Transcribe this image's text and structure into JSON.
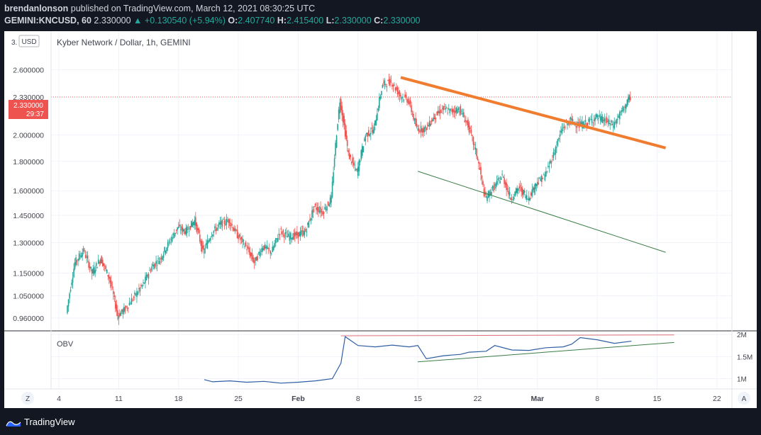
{
  "header": {
    "publisher": "brendanlonson",
    "published_text": "published on TradingView.com, March 12, 2021 08:30:25 UTC",
    "symbol": "GEMINI:KNCUSD, 60",
    "last": "2.330000",
    "change": "▲ +0.130540 (+5.94%)",
    "o_label": "O:",
    "o": "2.407740",
    "h_label": "H:",
    "h": "2.415400",
    "l_label": "L:",
    "l": "2.330000",
    "c_label": "C:",
    "c": "2.330000"
  },
  "chart": {
    "title": "Kyber Network / Dollar, 1h, GEMINI",
    "currency_badge": "USD",
    "top_tick_partial": "3.",
    "price_badge": "2.330000",
    "countdown": "29:37",
    "indicator_label": "OBV",
    "timezone_button": "Z",
    "auto_button": "A",
    "colors": {
      "price_line": "#e74c3c",
      "resistance": "#f07c2f",
      "support": "#3a7d44",
      "obv_line": "#2e5fa3",
      "obv_resistance": "#e0737a",
      "obv_support": "#3a7d44",
      "up": "#26a69a",
      "down": "#ef5350"
    }
  },
  "chart_data": [
    {
      "type": "candlestick",
      "title": "Kyber Network / Dollar, 1h, GEMINI",
      "y_ticks": [
        "2.600000",
        "2.330000",
        "2.000000",
        "1.800000",
        "1.600000",
        "1.450000",
        "1.300000",
        "1.150000",
        "1.050000",
        "0.960000"
      ],
      "x_ticks": [
        "4",
        "11",
        "18",
        "25",
        "Feb",
        "8",
        "15",
        "22",
        "Mar",
        "8",
        "15",
        "22"
      ],
      "ylim": [
        0.92,
        3.0
      ],
      "scale": "log",
      "close_path": [
        [
          "Jan 5",
          0.98
        ],
        [
          "Jan 6",
          1.2
        ],
        [
          "Jan 7",
          1.26
        ],
        [
          "Jan 8",
          1.15
        ],
        [
          "Jan 9",
          1.22
        ],
        [
          "Jan 10",
          1.13
        ],
        [
          "Jan 11",
          0.97
        ],
        [
          "Jan 12",
          1.0
        ],
        [
          "Jan 13",
          1.05
        ],
        [
          "Jan 14",
          1.1
        ],
        [
          "Jan 15",
          1.18
        ],
        [
          "Jan 16",
          1.22
        ],
        [
          "Jan 17",
          1.3
        ],
        [
          "Jan 18",
          1.38
        ],
        [
          "Jan 19",
          1.36
        ],
        [
          "Jan 20",
          1.42
        ],
        [
          "Jan 21",
          1.25
        ],
        [
          "Jan 22",
          1.35
        ],
        [
          "Jan 23",
          1.4
        ],
        [
          "Jan 24",
          1.42
        ],
        [
          "Jan 25",
          1.34
        ],
        [
          "Jan 26",
          1.28
        ],
        [
          "Jan 27",
          1.2
        ],
        [
          "Jan 28",
          1.28
        ],
        [
          "Jan 29",
          1.25
        ],
        [
          "Jan 30",
          1.36
        ],
        [
          "Jan 31",
          1.33
        ],
        [
          "Feb 1",
          1.34
        ],
        [
          "Feb 2",
          1.36
        ],
        [
          "Feb 3",
          1.5
        ],
        [
          "Feb 4",
          1.47
        ],
        [
          "Feb 5",
          1.55
        ],
        [
          "Feb 6",
          2.3
        ],
        [
          "Feb 7",
          1.85
        ],
        [
          "Feb 8",
          1.72
        ],
        [
          "Feb 9",
          2.0
        ],
        [
          "Feb 10",
          2.05
        ],
        [
          "Feb 11",
          2.45
        ],
        [
          "Feb 12",
          2.48
        ],
        [
          "Feb 13",
          2.35
        ],
        [
          "Feb 14",
          2.3
        ],
        [
          "Feb 15",
          2.05
        ],
        [
          "Feb 16",
          2.05
        ],
        [
          "Feb 17",
          2.15
        ],
        [
          "Feb 18",
          2.22
        ],
        [
          "Feb 19",
          2.2
        ],
        [
          "Feb 20",
          2.22
        ],
        [
          "Feb 21",
          2.08
        ],
        [
          "Feb 22",
          1.85
        ],
        [
          "Feb 23",
          1.55
        ],
        [
          "Feb 24",
          1.62
        ],
        [
          "Feb 25",
          1.7
        ],
        [
          "Feb 26",
          1.55
        ],
        [
          "Feb 27",
          1.62
        ],
        [
          "Feb 28",
          1.55
        ],
        [
          "Mar 1",
          1.65
        ],
        [
          "Mar 2",
          1.7
        ],
        [
          "Mar 3",
          1.85
        ],
        [
          "Mar 4",
          2.05
        ],
        [
          "Mar 5",
          2.12
        ],
        [
          "Mar 6",
          2.08
        ],
        [
          "Mar 7",
          2.1
        ],
        [
          "Mar 8",
          2.15
        ],
        [
          "Mar 9",
          2.12
        ],
        [
          "Mar 10",
          2.08
        ],
        [
          "Mar 11",
          2.2
        ],
        [
          "Mar 12",
          2.33
        ]
      ],
      "trendlines": [
        {
          "name": "resistance",
          "from": [
            "Feb 13",
            2.52
          ],
          "to": [
            "Mar 16",
            1.9
          ]
        },
        {
          "name": "support",
          "from": [
            "Feb 15",
            1.73
          ],
          "to": [
            "Mar 16",
            1.25
          ]
        }
      ],
      "current_price": 2.33
    },
    {
      "type": "line",
      "title": "OBV",
      "y_ticks": [
        "2M",
        "1.5M",
        "1M"
      ],
      "ylim": [
        0.8,
        2.05
      ],
      "x": [
        "Jan 21",
        "Jan 22",
        "Jan 24",
        "Jan 26",
        "Jan 28",
        "Jan 30",
        "Feb 1",
        "Feb 3",
        "Feb 5",
        "Feb 6",
        "Feb 6.5",
        "Feb 8",
        "Feb 10",
        "Feb 12",
        "Feb 14",
        "Feb 15",
        "Feb 16",
        "Feb 18",
        "Feb 20",
        "Feb 21",
        "Feb 23",
        "Feb 24",
        "Feb 26",
        "Feb 28",
        "Mar 2",
        "Mar 4",
        "Mar 5",
        "Mar 6",
        "Mar 8",
        "Mar 10",
        "Mar 12"
      ],
      "values": [
        0.98,
        0.93,
        0.95,
        0.92,
        0.94,
        0.9,
        0.92,
        0.95,
        1.0,
        1.35,
        1.95,
        1.75,
        1.72,
        1.76,
        1.72,
        1.75,
        1.45,
        1.52,
        1.55,
        1.6,
        1.62,
        1.75,
        1.65,
        1.64,
        1.7,
        1.72,
        1.78,
        1.93,
        1.88,
        1.8,
        1.85
      ],
      "trendlines": [
        {
          "name": "resistance",
          "from": [
            "Feb 6",
            1.97
          ],
          "to": [
            "Mar 17",
            1.99
          ]
        },
        {
          "name": "support",
          "from": [
            "Feb 15",
            1.38
          ],
          "to": [
            "Mar 17",
            1.82
          ]
        }
      ]
    }
  ]
}
